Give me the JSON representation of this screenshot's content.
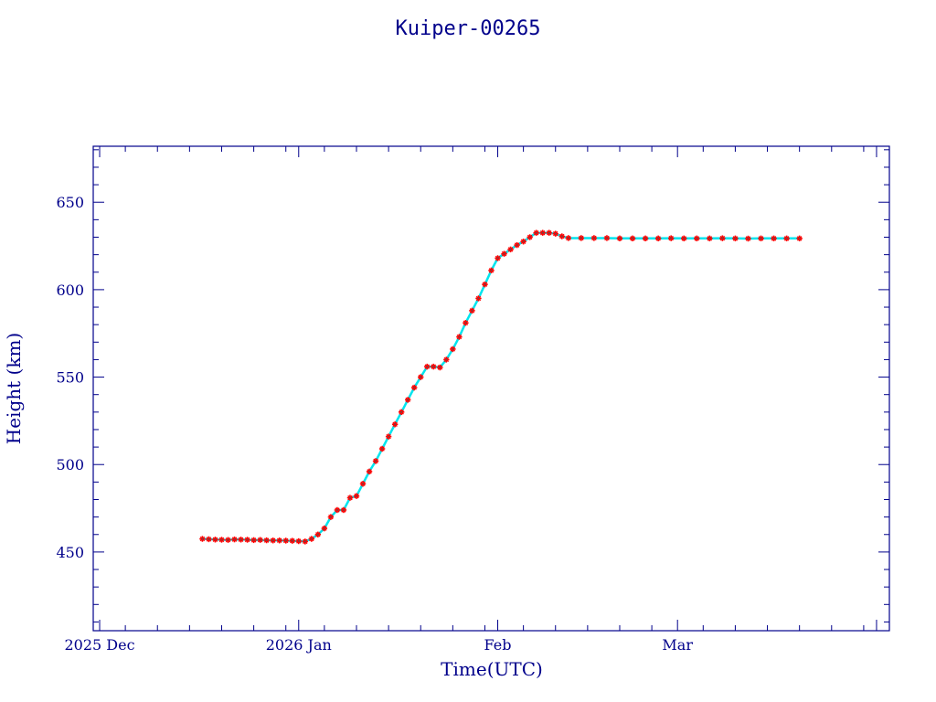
{
  "chart_data": {
    "type": "scatter",
    "title": "Kuiper-00265",
    "xlabel": "Time(UTC)",
    "ylabel": "Height (km)",
    "x_tick_labels": [
      "2025 Dec",
      "2026 Jan",
      "Feb",
      "Mar"
    ],
    "x_tick_dates": [
      "2025-12-01",
      "2026-01-01",
      "2026-02-01",
      "2026-03-01"
    ],
    "xlim": [
      "2025-11-30",
      "2026-04-03"
    ],
    "yticks": [
      450,
      500,
      550,
      600,
      650
    ],
    "ylim": [
      405,
      682
    ],
    "grid": false,
    "colors": {
      "axis": "#00008b",
      "point": "#ff0000",
      "line": "#00e5ee",
      "point_edge": "#555555"
    },
    "series": [
      {
        "points": [
          [
            "2025-12-17",
            457.5
          ],
          [
            "2025-12-18",
            457.3
          ],
          [
            "2025-12-19",
            457.1
          ],
          [
            "2025-12-20",
            457.0
          ],
          [
            "2025-12-21",
            456.9
          ],
          [
            "2025-12-22",
            457.2
          ],
          [
            "2025-12-23",
            457.1
          ],
          [
            "2025-12-24",
            457.0
          ],
          [
            "2025-12-25",
            456.8
          ],
          [
            "2025-12-26",
            456.9
          ],
          [
            "2025-12-27",
            456.7
          ],
          [
            "2025-12-28",
            456.6
          ],
          [
            "2025-12-29",
            456.6
          ],
          [
            "2025-12-30",
            456.5
          ],
          [
            "2025-12-31",
            456.4
          ],
          [
            "2026-01-01",
            456.2
          ],
          [
            "2026-01-02",
            456.0
          ],
          [
            "2026-01-03",
            457.5
          ],
          [
            "2026-01-04",
            460.0
          ],
          [
            "2026-01-05",
            463.5
          ],
          [
            "2026-01-06",
            470.0
          ],
          [
            "2026-01-07",
            474.0
          ],
          [
            "2026-01-08",
            474.0
          ],
          [
            "2026-01-09",
            481.0
          ],
          [
            "2026-01-10",
            482.0
          ],
          [
            "2026-01-11",
            489.0
          ],
          [
            "2026-01-12",
            496.0
          ],
          [
            "2026-01-13",
            502.0
          ],
          [
            "2026-01-14",
            509.0
          ],
          [
            "2026-01-15",
            516.0
          ],
          [
            "2026-01-16",
            523.0
          ],
          [
            "2026-01-17",
            530.0
          ],
          [
            "2026-01-18",
            537.0
          ],
          [
            "2026-01-19",
            544.0
          ],
          [
            "2026-01-20",
            550.0
          ],
          [
            "2026-01-21",
            556.0
          ],
          [
            "2026-01-22",
            556.0
          ],
          [
            "2026-01-23",
            555.5
          ],
          [
            "2026-01-24",
            560.0
          ],
          [
            "2026-01-25",
            566.0
          ],
          [
            "2026-01-26",
            573.0
          ],
          [
            "2026-01-27",
            581.0
          ],
          [
            "2026-01-28",
            588.0
          ],
          [
            "2026-01-29",
            595.0
          ],
          [
            "2026-01-30",
            603.0
          ],
          [
            "2026-01-31",
            611.0
          ],
          [
            "2026-02-01",
            618.0
          ],
          [
            "2026-02-02",
            620.5
          ],
          [
            "2026-02-03",
            623.0
          ],
          [
            "2026-02-04",
            625.5
          ],
          [
            "2026-02-05",
            627.5
          ],
          [
            "2026-02-06",
            630.0
          ],
          [
            "2026-02-07",
            632.5
          ],
          [
            "2026-02-08",
            632.5
          ],
          [
            "2026-02-09",
            632.5
          ],
          [
            "2026-02-10",
            632.0
          ],
          [
            "2026-02-11",
            630.5
          ],
          [
            "2026-02-12",
            629.5
          ],
          [
            "2026-02-14",
            629.5
          ],
          [
            "2026-02-16",
            629.5
          ],
          [
            "2026-02-18",
            629.5
          ],
          [
            "2026-02-20",
            629.3
          ],
          [
            "2026-02-22",
            629.3
          ],
          [
            "2026-02-24",
            629.3
          ],
          [
            "2026-02-26",
            629.3
          ],
          [
            "2026-02-28",
            629.4
          ],
          [
            "2026-03-02",
            629.3
          ],
          [
            "2026-03-04",
            629.3
          ],
          [
            "2026-03-06",
            629.3
          ],
          [
            "2026-03-08",
            629.4
          ],
          [
            "2026-03-10",
            629.3
          ],
          [
            "2026-03-12",
            629.2
          ],
          [
            "2026-03-14",
            629.3
          ],
          [
            "2026-03-16",
            629.3
          ],
          [
            "2026-03-18",
            629.3
          ],
          [
            "2026-03-20",
            629.3
          ]
        ]
      }
    ]
  }
}
